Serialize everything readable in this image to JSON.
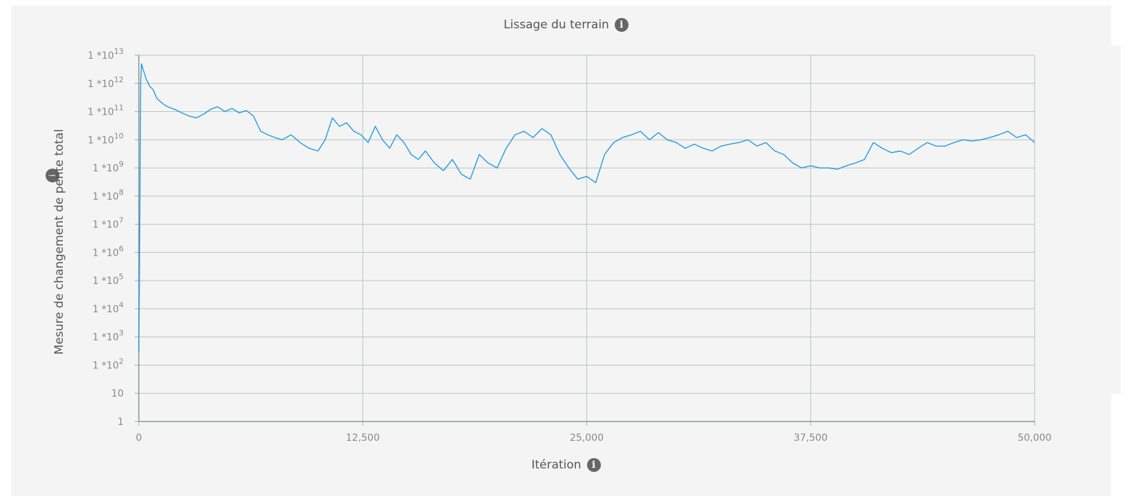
{
  "chart_data": {
    "type": "line",
    "title": "Lissage du terrain",
    "xlabel": "Itération",
    "ylabel": "Mesure de changement de pente total",
    "y_scale": "log",
    "xlim": [
      0,
      50000
    ],
    "ylim": [
      1,
      10000000000000
    ],
    "x_ticks": [
      "0",
      "12,500",
      "25,000",
      "37,500",
      "50,000"
    ],
    "x_tick_values": [
      0,
      12500,
      25000,
      37500,
      50000
    ],
    "y_ticks": [
      "1",
      "10",
      "1 *10",
      "1 *10",
      "1 *10",
      "1 *10",
      "1 *10",
      "1 *10",
      "1 *10",
      "1 *10",
      "1 *10",
      "1 *10",
      "1 *10",
      "1 *10"
    ],
    "y_tick_exponents": [
      "",
      "",
      "2",
      "3",
      "4",
      "5",
      "6",
      "7",
      "8",
      "9",
      "10",
      "11",
      "12",
      "13"
    ],
    "grid": true,
    "line_color": "#1f9bde",
    "series": [
      {
        "x": [
          0,
          50,
          100,
          150,
          250,
          400,
          600,
          800,
          1000,
          1300,
          1600,
          2000,
          2400,
          2800,
          3200,
          3600,
          4000,
          4400,
          4800,
          5200,
          5600,
          6000,
          6400,
          6800,
          7200,
          7600,
          8000,
          8500,
          9000,
          9500,
          10000,
          10400,
          10800,
          11200,
          11600,
          12000,
          12400,
          12800,
          13200,
          13600,
          14000,
          14400,
          14800,
          15200,
          15600,
          16000,
          16500,
          17000,
          17500,
          18000,
          18500,
          19000,
          19500,
          20000,
          20500,
          21000,
          21500,
          22000,
          22500,
          23000,
          23500,
          24000,
          24500,
          25000,
          25500,
          26000,
          26500,
          27000,
          27500,
          28000,
          28500,
          29000,
          29500,
          30000,
          30500,
          31000,
          31500,
          32000,
          32500,
          33000,
          33500,
          34000,
          34500,
          35000,
          35500,
          36000,
          36500,
          37000,
          37500,
          38000,
          38500,
          39000,
          39500,
          40000,
          40500,
          41000,
          41500,
          42000,
          42500,
          43000,
          43500,
          44000,
          44500,
          45000,
          45500,
          46000,
          46500,
          47000,
          47500,
          48000,
          48500,
          49000,
          49500,
          50000
        ],
        "y": [
          300,
          5000000,
          1000000000000,
          5000000000000,
          3000000000000,
          1500000000000,
          800000000000,
          600000000000,
          300000000000,
          200000000000,
          150000000000,
          120000000000,
          90000000000,
          70000000000,
          60000000000,
          80000000000,
          120000000000,
          150000000000,
          100000000000,
          130000000000,
          90000000000,
          110000000000,
          70000000000,
          20000000000,
          15000000000,
          12000000000,
          10000000000,
          15000000000,
          8000000000,
          5000000000,
          4000000000,
          10000000000,
          60000000000,
          30000000000,
          40000000000,
          20000000000,
          15000000000,
          8000000000,
          30000000000,
          10000000000,
          5000000000,
          15000000000,
          8000000000,
          3000000000,
          2000000000,
          4000000000,
          1500000000,
          800000000,
          2000000000,
          600000000,
          400000000,
          3000000000,
          1500000000,
          1000000000,
          5000000000,
          15000000000,
          20000000000,
          12000000000,
          25000000000,
          15000000000,
          3000000000,
          1000000000,
          400000000,
          500000000,
          300000000,
          3000000000,
          8000000000,
          12000000000,
          15000000000,
          20000000000,
          10000000000,
          18000000000,
          10000000000,
          8000000000,
          5000000000,
          7000000000,
          5000000000,
          4000000000,
          6000000000,
          7000000000,
          8000000000,
          10000000000,
          6000000000,
          8000000000,
          4000000000,
          3000000000,
          1500000000,
          1000000000,
          1200000000,
          1000000000,
          1000000000,
          900000000,
          1200000000,
          1500000000,
          2000000000,
          8000000000,
          5000000000,
          3500000000,
          4000000000,
          3000000000,
          5000000000,
          8000000000,
          6000000000,
          6000000000,
          8000000000,
          10000000000,
          9000000000,
          10000000000,
          12000000000,
          15000000000,
          20000000000,
          12000000000,
          15000000000,
          8000000000
        ]
      }
    ]
  }
}
